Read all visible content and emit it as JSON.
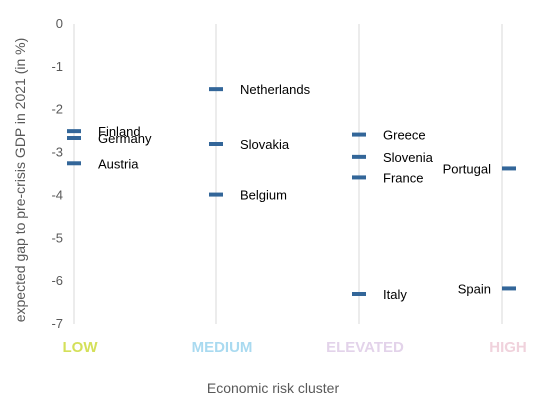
{
  "chart_data": {
    "type": "scatter",
    "xlabel": "Economic risk cluster",
    "ylabel": "expected gap to pre-crisis GDP in 2021 (in %)",
    "ylim": [
      -7,
      0
    ],
    "yticks": [
      "0",
      "-1",
      "-2",
      "-3",
      "-4",
      "-5",
      "-6",
      "-7"
    ],
    "grid": "vertical",
    "marker_color": "#336699",
    "categories": [
      {
        "label": "LOW",
        "color": "#d4e05a"
      },
      {
        "label": "MEDIUM",
        "color": "#a9daf0"
      },
      {
        "label": "ELEVATED",
        "color": "#e3d3ea"
      },
      {
        "label": "HIGH",
        "color": "#f0d2dc"
      }
    ],
    "points": [
      {
        "country": "Finland",
        "cluster": 0,
        "value": -2.5
      },
      {
        "country": "Germany",
        "cluster": 0,
        "value": -2.66
      },
      {
        "country": "Austria",
        "cluster": 0,
        "value": -3.25
      },
      {
        "country": "Netherlands",
        "cluster": 1,
        "value": -1.52
      },
      {
        "country": "Slovakia",
        "cluster": 1,
        "value": -2.8
      },
      {
        "country": "Belgium",
        "cluster": 1,
        "value": -3.98
      },
      {
        "country": "Greece",
        "cluster": 2,
        "value": -2.58
      },
      {
        "country": "Slovenia",
        "cluster": 2,
        "value": -3.1
      },
      {
        "country": "France",
        "cluster": 2,
        "value": -3.58
      },
      {
        "country": "Italy",
        "cluster": 2,
        "value": -6.3
      },
      {
        "country": "Portugal",
        "cluster": 3,
        "value": -3.37
      },
      {
        "country": "Spain",
        "cluster": 3,
        "value": -6.17
      }
    ]
  }
}
